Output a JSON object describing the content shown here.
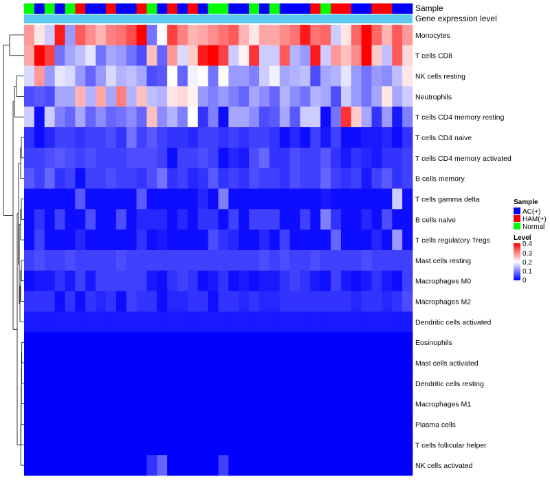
{
  "chart_data": {
    "type": "heatmap",
    "title": "",
    "annotation_rows": [
      {
        "label": "Sample"
      },
      {
        "label": "Gene expression level"
      }
    ],
    "sample_groups": [
      2,
      0,
      2,
      0,
      2,
      1,
      0,
      0,
      1,
      0,
      0,
      1,
      2,
      0,
      1,
      0,
      1,
      0,
      2,
      2,
      0,
      0,
      2,
      0,
      2,
      0,
      0,
      0,
      1,
      2,
      1,
      1,
      0,
      0,
      1,
      1,
      0,
      0
    ],
    "rows": [
      "Monocytes",
      "T cells CD8",
      "NK cells resting",
      "Neutrophils",
      "T cells CD4 memory resting",
      "T cells CD4 naive",
      "T cells CD4 memory activated",
      "B cells memory",
      "T cells gamma delta",
      "B cells naive",
      "T cells regulatory  Tregs",
      "Mast cells resting",
      "Macrophages M0",
      "Macrophages M2",
      "Dendritic cells activated",
      "Eosinophils",
      "Mast cells activated",
      "Dendritic cells resting",
      "Macrophages M1",
      "Plasma cells",
      "T cells follicular helper",
      "NK cells activated"
    ],
    "values": [
      [
        0.28,
        0.22,
        0.16,
        0.38,
        0.12,
        0.33,
        0.29,
        0.26,
        0.3,
        0.31,
        0.34,
        0.4,
        0.09,
        0.2,
        0.35,
        0.3,
        0.26,
        0.27,
        0.29,
        0.31,
        0.33,
        0.26,
        0.22,
        0.27,
        0.27,
        0.29,
        0.31,
        0.38,
        0.31,
        0.32,
        0.16,
        0.22,
        0.32,
        0.4,
        0.32,
        0.26,
        0.33,
        0.28
      ],
      [
        0.27,
        0.4,
        0.35,
        0.09,
        0.13,
        0.15,
        0.18,
        0.09,
        0.13,
        0.12,
        0.09,
        0.06,
        0.25,
        0.08,
        0.28,
        0.17,
        0.24,
        0.38,
        0.4,
        0.35,
        0.16,
        0.21,
        0.36,
        0.16,
        0.16,
        0.33,
        0.14,
        0.12,
        0.38,
        0.16,
        0.28,
        0.25,
        0.29,
        0.4,
        0.24,
        0.15,
        0.33,
        0.23
      ],
      [
        0.17,
        0.28,
        0.12,
        0.18,
        0.17,
        0.12,
        0.08,
        0.12,
        0.17,
        0.14,
        0.15,
        0.13,
        0.06,
        0.07,
        0.2,
        0.08,
        0.19,
        0.2,
        0.09,
        0.2,
        0.12,
        0.12,
        0.1,
        0.16,
        0.19,
        0.13,
        0.14,
        0.15,
        0.06,
        0.13,
        0.14,
        0.18,
        0.12,
        0.09,
        0.12,
        0.11,
        0.15,
        0.22
      ],
      [
        0.06,
        0.07,
        0.06,
        0.13,
        0.13,
        0.26,
        0.14,
        0.27,
        0.13,
        0.3,
        0.14,
        0.25,
        0.15,
        0.14,
        0.22,
        0.23,
        0.21,
        0.12,
        0.1,
        0.12,
        0.1,
        0.08,
        0.13,
        0.11,
        0.08,
        0.14,
        0.11,
        0.09,
        0.14,
        0.13,
        0.06,
        0.16,
        0.12,
        0.09,
        0.13,
        0.22,
        0.13,
        0.16
      ],
      [
        0.16,
        0.01,
        0.16,
        0.1,
        0.08,
        0.13,
        0.08,
        0.11,
        0.08,
        0.09,
        0.11,
        0.08,
        0.25,
        0.11,
        0.14,
        0.1,
        0.2,
        0.04,
        0.1,
        0.01,
        0.13,
        0.13,
        0.11,
        0.06,
        0.07,
        0.13,
        0.07,
        0.16,
        0.16,
        0.01,
        0.09,
        0.36,
        0.24,
        0.13,
        0.04,
        0.12,
        0.02,
        0.1
      ],
      [
        0.04,
        0.01,
        0.03,
        0.05,
        0.05,
        0.04,
        0.05,
        0.05,
        0.06,
        0.04,
        0.09,
        0.05,
        0.07,
        0.05,
        0.04,
        0.04,
        0.03,
        0.05,
        0.05,
        0.04,
        0.05,
        0.04,
        0.05,
        0.05,
        0.04,
        0.01,
        0.03,
        0.01,
        0.05,
        0.02,
        0.05,
        0.01,
        0.01,
        0.02,
        0.02,
        0.03,
        0.01,
        0.04
      ],
      [
        0.05,
        0.05,
        0.06,
        0.07,
        0.06,
        0.05,
        0.06,
        0.05,
        0.05,
        0.05,
        0.06,
        0.06,
        0.06,
        0.05,
        0.01,
        0.05,
        0.05,
        0.06,
        0.05,
        0.01,
        0.03,
        0.02,
        0.06,
        0.08,
        0.04,
        0.04,
        0.06,
        0.05,
        0.05,
        0.07,
        0.04,
        0.02,
        0.04,
        0.03,
        0.02,
        0.04,
        0.04,
        0.05
      ],
      [
        0.07,
        0.05,
        0.08,
        0.04,
        0.05,
        0.01,
        0.05,
        0.05,
        0.06,
        0.05,
        0.05,
        0.04,
        0.06,
        0.09,
        0.04,
        0.05,
        0.03,
        0.04,
        0.07,
        0.04,
        0.05,
        0.04,
        0.06,
        0.05,
        0.05,
        0.04,
        0.06,
        0.05,
        0.05,
        0.08,
        0.05,
        0.04,
        0.05,
        0.02,
        0.05,
        0.07,
        0.04,
        0.05
      ],
      [
        0.01,
        0.01,
        0.01,
        0.01,
        0.01,
        0.07,
        0.01,
        0.01,
        0.01,
        0.01,
        0.01,
        0.07,
        0.01,
        0.01,
        0.01,
        0.01,
        0.01,
        0.03,
        0.01,
        0.1,
        0.01,
        0.01,
        0.01,
        0.01,
        0.01,
        0.01,
        0.01,
        0.01,
        0.01,
        0.02,
        0.01,
        0.01,
        0.01,
        0.01,
        0.01,
        0.01,
        0.16,
        0.01
      ],
      [
        0.01,
        0.04,
        0.01,
        0.05,
        0.01,
        0.01,
        0.06,
        0.01,
        0.01,
        0.06,
        0.01,
        0.03,
        0.03,
        0.03,
        0.01,
        0.03,
        0.01,
        0.04,
        0.04,
        0.01,
        0.05,
        0.01,
        0.05,
        0.05,
        0.05,
        0.01,
        0.01,
        0.05,
        0.01,
        0.1,
        0.04,
        0.01,
        0.01,
        0.03,
        0.01,
        0.06,
        0.01,
        0.01
      ],
      [
        0.01,
        0.05,
        0.01,
        0.01,
        0.01,
        0.03,
        0.01,
        0.01,
        0.01,
        0.01,
        0.01,
        0.04,
        0.01,
        0.02,
        0.01,
        0.01,
        0.01,
        0.01,
        0.06,
        0.04,
        0.03,
        0.01,
        0.01,
        0.03,
        0.01,
        0.05,
        0.01,
        0.01,
        0.01,
        0.01,
        0.08,
        0.01,
        0.01,
        0.01,
        0.03,
        0.01,
        0.12,
        0.01
      ],
      [
        0.05,
        0.06,
        0.05,
        0.05,
        0.06,
        0.05,
        0.05,
        0.05,
        0.05,
        0.06,
        0.05,
        0.05,
        0.05,
        0.05,
        0.05,
        0.05,
        0.05,
        0.05,
        0.05,
        0.05,
        0.05,
        0.05,
        0.05,
        0.06,
        0.05,
        0.06,
        0.05,
        0.05,
        0.06,
        0.05,
        0.05,
        0.05,
        0.05,
        0.06,
        0.05,
        0.05,
        0.05,
        0.05
      ],
      [
        0.01,
        0.02,
        0.02,
        0.04,
        0.02,
        0.05,
        0.02,
        0.05,
        0.05,
        0.05,
        0.05,
        0.05,
        0.02,
        0.01,
        0.04,
        0.05,
        0.04,
        0.01,
        0.02,
        0.04,
        0.01,
        0.02,
        0.01,
        0.02,
        0.02,
        0.04,
        0.05,
        0.04,
        0.02,
        0.01,
        0.05,
        0.02,
        0.01,
        0.02,
        0.04,
        0.02,
        0.01,
        0.05
      ],
      [
        0.04,
        0.04,
        0.04,
        0.01,
        0.04,
        0.01,
        0.04,
        0.03,
        0.04,
        0.01,
        0.05,
        0.04,
        0.04,
        0.01,
        0.03,
        0.03,
        0.04,
        0.04,
        0.01,
        0.04,
        0.04,
        0.03,
        0.04,
        0.03,
        0.03,
        0.04,
        0.04,
        0.04,
        0.04,
        0.04,
        0.04,
        0.04,
        0.03,
        0.04,
        0.04,
        0.03,
        0.04,
        0.06
      ],
      [
        0.02,
        0.02,
        0.02,
        0.02,
        0.02,
        0.02,
        0.02,
        0.02,
        0.02,
        0.02,
        0.02,
        0.02,
        0.02,
        0.02,
        0.02,
        0.02,
        0.02,
        0.02,
        0.02,
        0.02,
        0.02,
        0.02,
        0.02,
        0.02,
        0.02,
        0.02,
        0.02,
        0.02,
        0.02,
        0.02,
        0.02,
        0.02,
        0.02,
        0.02,
        0.02,
        0.02,
        0.02,
        0.02
      ],
      [
        0,
        0,
        0,
        0,
        0,
        0,
        0,
        0,
        0,
        0,
        0,
        0,
        0,
        0,
        0,
        0,
        0,
        0,
        0,
        0,
        0,
        0,
        0,
        0,
        0,
        0,
        0,
        0,
        0,
        0,
        0,
        0,
        0,
        0,
        0,
        0,
        0,
        0
      ],
      [
        0,
        0,
        0,
        0,
        0,
        0,
        0,
        0,
        0,
        0,
        0,
        0,
        0,
        0,
        0,
        0,
        0,
        0,
        0,
        0,
        0,
        0,
        0,
        0,
        0,
        0,
        0,
        0,
        0,
        0,
        0,
        0,
        0,
        0,
        0,
        0,
        0,
        0
      ],
      [
        0,
        0,
        0,
        0,
        0,
        0,
        0,
        0,
        0,
        0,
        0,
        0,
        0,
        0,
        0,
        0,
        0,
        0,
        0,
        0,
        0,
        0,
        0,
        0,
        0,
        0,
        0,
        0,
        0,
        0,
        0,
        0,
        0,
        0,
        0,
        0,
        0,
        0
      ],
      [
        0,
        0,
        0,
        0,
        0,
        0,
        0,
        0,
        0,
        0,
        0,
        0,
        0,
        0,
        0,
        0,
        0,
        0,
        0,
        0,
        0,
        0,
        0,
        0,
        0,
        0,
        0,
        0,
        0,
        0,
        0,
        0,
        0,
        0,
        0,
        0,
        0,
        0
      ],
      [
        0,
        0,
        0,
        0,
        0,
        0,
        0,
        0,
        0,
        0,
        0,
        0,
        0,
        0,
        0,
        0,
        0,
        0,
        0,
        0,
        0,
        0,
        0,
        0,
        0,
        0,
        0,
        0,
        0,
        0,
        0,
        0,
        0,
        0,
        0,
        0,
        0,
        0
      ],
      [
        0,
        0,
        0,
        0,
        0,
        0,
        0,
        0,
        0,
        0,
        0,
        0,
        0,
        0,
        0,
        0,
        0,
        0,
        0,
        0,
        0,
        0,
        0,
        0,
        0,
        0,
        0,
        0,
        0,
        0,
        0,
        0,
        0,
        0,
        0,
        0,
        0,
        0
      ],
      [
        0,
        0,
        0,
        0,
        0,
        0,
        0,
        0,
        0,
        0,
        0,
        0,
        0.04,
        0.08,
        0,
        0,
        0,
        0,
        0,
        0.05,
        0,
        0,
        0,
        0,
        0,
        0,
        0,
        0,
        0,
        0,
        0,
        0,
        0,
        0,
        0,
        0,
        0,
        0
      ]
    ],
    "legend": {
      "sample_title": "Sample",
      "sample_groups": [
        {
          "name": "AC(+)",
          "color": "#0000ff"
        },
        {
          "name": "HAM(+)",
          "color": "#ff0000"
        },
        {
          "name": "Normal",
          "color": "#00ff00"
        }
      ],
      "level_title": "Level",
      "level_ticks": [
        "0.4",
        "0.3",
        "0.2",
        "0.1",
        "0"
      ],
      "level_range": [
        0,
        0.4
      ]
    },
    "colors": {
      "low": "#0000ff",
      "mid": "#ffffff",
      "high": "#ff0000",
      "expression_band": "#5bc8ef",
      "dendrogram": "#000000"
    }
  }
}
